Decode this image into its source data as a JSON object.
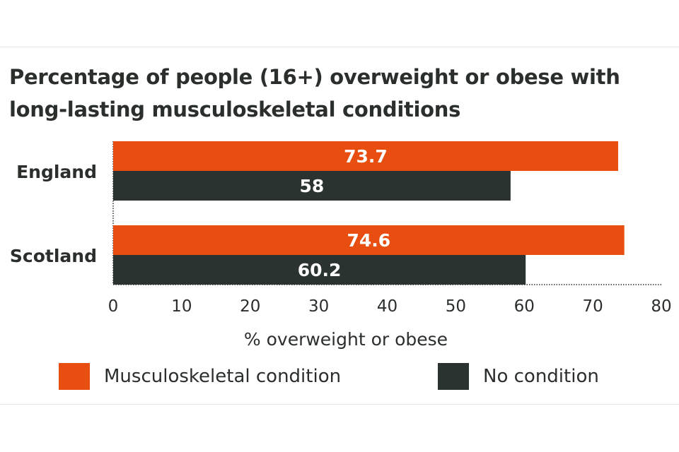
{
  "chart_data": {
    "type": "bar",
    "orientation": "horizontal",
    "title": "Percentage of people (16+) overweight or obese with long-lasting musculoskeletal conditions",
    "categories": [
      "England",
      "Scotland"
    ],
    "series": [
      {
        "name": "Musculoskeletal condition",
        "values": [
          73.7,
          74.6
        ],
        "labels": [
          "73.7",
          "74.6"
        ],
        "color": "#e84e10"
      },
      {
        "name": "No condition",
        "values": [
          58,
          60.2
        ],
        "labels": [
          "58",
          "60.2"
        ],
        "color": "#2a3330"
      }
    ],
    "xlabel": "% overweight or obese",
    "xlim": [
      0,
      80
    ],
    "xticks": [
      "0",
      "10",
      "20",
      "30",
      "40",
      "50",
      "60",
      "70",
      "80"
    ],
    "grid": false,
    "legend_position": "bottom"
  }
}
